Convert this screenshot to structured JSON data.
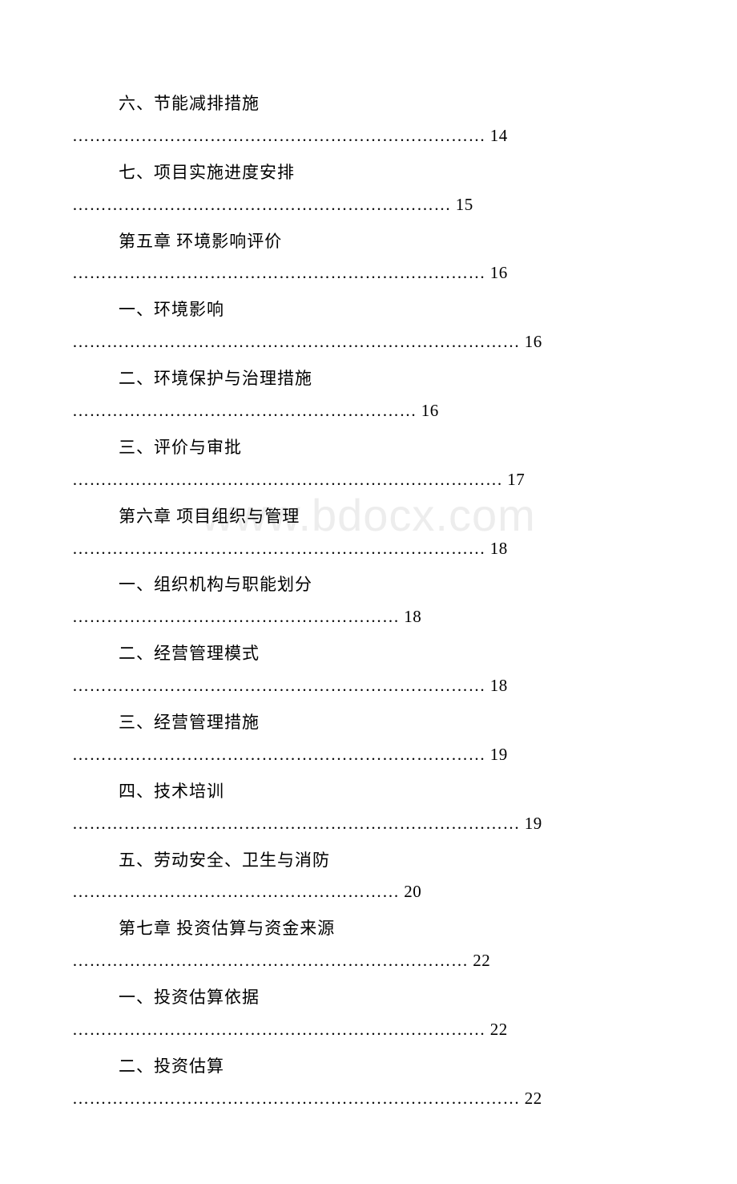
{
  "watermark": "www.bdocx.com",
  "typography": {
    "body_font": "SimSun",
    "font_size_pt": 16,
    "text_color": "#000000",
    "background_color": "#ffffff",
    "watermark_color": "#ededed",
    "watermark_font": "Arial",
    "watermark_fontsize_pt": 42
  },
  "entries": [
    {
      "title": "六、节能减排措施",
      "leader": "……………………………………………………………… 14"
    },
    {
      "title": "七、项目实施进度安排",
      "leader": "………………………………………………………… 15"
    },
    {
      "title": "第五章 环境影响评价",
      "leader": "……………………………………………………………… 16"
    },
    {
      "title": "一、环境影响",
      "leader": "…………………………………………………………………… 16"
    },
    {
      "title": "二、环境保护与治理措施",
      "leader": "…………………………………………………… 16"
    },
    {
      "title": "三、评价与审批",
      "leader": "………………………………………………………………… 17"
    },
    {
      "title": "第六章 项目组织与管理",
      "leader": "……………………………………………………………… 18"
    },
    {
      "title": "一、组织机构与职能划分",
      "leader": "………………………………………………… 18"
    },
    {
      "title": "二、经营管理模式",
      "leader": "……………………………………………………………… 18"
    },
    {
      "title": "三、经营管理措施",
      "leader": "……………………………………………………………… 19"
    },
    {
      "title": "四、技术培训",
      "leader": "…………………………………………………………………… 19"
    },
    {
      "title": "五、劳动安全、卫生与消防",
      "leader": "………………………………………………… 20"
    },
    {
      "title": "第七章 投资估算与资金来源",
      "leader": "…………………………………………………………… 22"
    },
    {
      "title": "一、投资估算依据",
      "leader": "……………………………………………………………… 22"
    },
    {
      "title": "二、投资估算",
      "leader": "…………………………………………………………………… 22"
    }
  ]
}
